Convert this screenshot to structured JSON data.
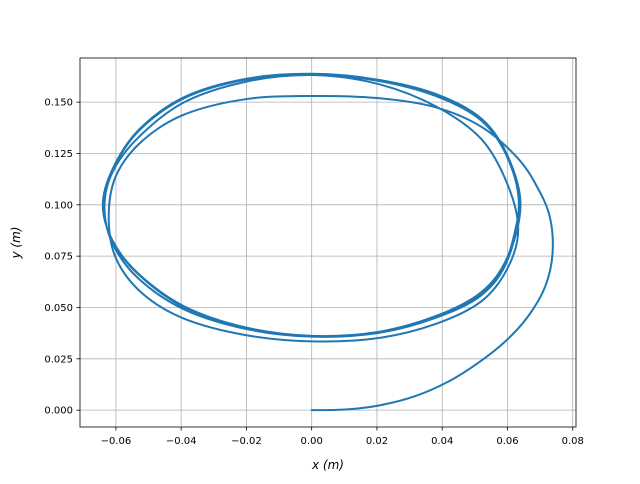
{
  "chart_data": {
    "type": "line",
    "title": "",
    "xlabel": "x (m)",
    "ylabel": "y (m)",
    "xlim": [
      -0.071,
      0.081
    ],
    "ylim": [
      -0.0082,
      0.1715
    ],
    "x_ticks": [
      -0.06,
      -0.04,
      -0.02,
      0.0,
      0.02,
      0.04,
      0.06,
      0.08
    ],
    "x_tick_labels": [
      "−0.06",
      "−0.04",
      "−0.02",
      "0.00",
      "0.02",
      "0.04",
      "0.06",
      "0.08"
    ],
    "y_ticks": [
      0.0,
      0.025,
      0.05,
      0.075,
      0.1,
      0.125,
      0.15
    ],
    "y_tick_labels": [
      "0.000",
      "0.025",
      "0.050",
      "0.075",
      "0.100",
      "0.125",
      "0.150"
    ],
    "grid": true,
    "legend": "none",
    "series_color": "#1f77b4",
    "grid_color": "#b0b0b0",
    "series": [
      {
        "x": [
          0.0,
          0.011,
          0.021,
          0.032,
          0.042,
          0.051,
          0.059,
          0.066,
          0.0715,
          0.0738,
          0.073,
          0.069,
          0.063,
          0.052,
          0.038,
          0.02,
          0.0,
          -0.02,
          -0.039,
          -0.052,
          -0.06,
          -0.0622,
          -0.06,
          -0.052,
          -0.039,
          -0.02,
          0.0,
          0.02,
          0.038,
          0.052,
          0.06,
          0.0633,
          0.06,
          0.052,
          0.038,
          0.02,
          0.0,
          -0.02,
          -0.039,
          -0.053,
          -0.061,
          -0.0635,
          -0.061,
          -0.053,
          -0.039,
          -0.02,
          0.0,
          0.02,
          0.038,
          0.052,
          0.06,
          0.0635,
          0.06,
          0.052,
          0.038,
          0.02,
          0.0,
          -0.02,
          -0.039,
          -0.053,
          -0.061,
          -0.0638,
          -0.061,
          -0.053,
          -0.039,
          -0.02,
          0.0,
          0.02,
          0.038,
          0.052,
          0.06,
          0.064,
          0.06,
          0.052,
          0.038,
          0.02,
          0.0,
          -0.02,
          -0.039,
          -0.053,
          -0.061,
          -0.064,
          -0.061,
          -0.053,
          -0.039,
          -0.02,
          0.0,
          0.02,
          0.038,
          0.052,
          0.06,
          0.064
        ],
        "y": [
          0.0,
          0.0004,
          0.0024,
          0.007,
          0.014,
          0.023,
          0.033,
          0.045,
          0.06,
          0.076,
          0.094,
          0.109,
          0.123,
          0.138,
          0.1475,
          0.152,
          0.153,
          0.1515,
          0.144,
          0.131,
          0.114,
          0.094,
          0.074,
          0.057,
          0.0445,
          0.0365,
          0.0335,
          0.035,
          0.042,
          0.053,
          0.069,
          0.088,
          0.11,
          0.132,
          0.148,
          0.159,
          0.1632,
          0.16,
          0.15,
          0.133,
          0.116,
          0.099,
          0.081,
          0.064,
          0.049,
          0.0395,
          0.0358,
          0.0375,
          0.045,
          0.056,
          0.073,
          0.1,
          0.123,
          0.141,
          0.153,
          0.1605,
          0.1635,
          0.161,
          0.152,
          0.136,
          0.117,
          0.1,
          0.082,
          0.066,
          0.05,
          0.04,
          0.036,
          0.0378,
          0.0455,
          0.057,
          0.074,
          0.1,
          0.124,
          0.142,
          0.154,
          0.161,
          0.1638,
          0.1614,
          0.1525,
          0.1365,
          0.1175,
          0.1,
          0.0825,
          0.0663,
          0.0505,
          0.0402,
          0.0362,
          0.038,
          0.0458,
          0.0575,
          0.0745,
          0.1
        ]
      }
    ]
  }
}
